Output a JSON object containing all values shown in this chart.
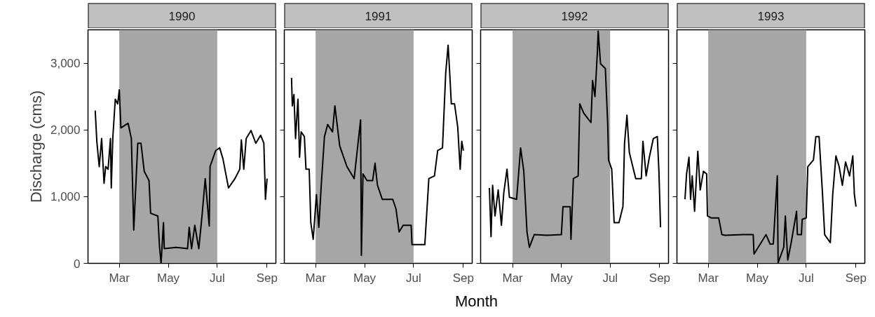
{
  "chart_data": [
    {
      "type": "line",
      "title": "1990",
      "ylabel": "Discharge (cms)",
      "xlim": [
        "1990-01-21",
        "1990-09-12"
      ],
      "ylim": [
        0,
        3500
      ],
      "yticks": [
        0,
        {
          "value": 1000,
          "label": "1,000"
        },
        {
          "value": 2000,
          "label": "2,000"
        },
        {
          "value": 3000,
          "label": "3,000"
        }
      ],
      "xticks": [
        {
          "value": "1990-03-01",
          "label": "Mar"
        },
        {
          "value": "1990-05-01",
          "label": "May"
        },
        {
          "value": "1990-07-01",
          "label": "Jul"
        },
        {
          "value": "1990-09-01",
          "label": "Sep"
        }
      ],
      "grid": false,
      "bands": [
        {
          "axis": "x",
          "from": "1990-03-01",
          "to": "1990-07-01",
          "color": "#a6a6a6"
        }
      ],
      "series": [
        {
          "color": "#000000",
          "x": [
            "1990-01-30",
            "1990-02-01",
            "1990-02-04",
            "1990-02-07",
            "1990-02-10",
            "1990-02-12",
            "1990-02-15",
            "1990-02-18",
            "1990-02-19",
            "1990-02-21",
            "1990-02-24",
            "1990-02-27",
            "1990-03-01",
            "1990-03-03",
            "1990-03-12",
            "1990-03-16",
            "1990-03-19",
            "1990-03-24",
            "1990-03-28",
            "1990-04-01",
            "1990-04-07",
            "1990-04-09",
            "1990-04-18",
            "1990-04-20",
            "1990-04-22",
            "1990-04-25",
            "1990-04-26",
            "1990-05-11",
            "1990-05-25",
            "1990-05-27",
            "1990-05-30",
            "1990-06-03",
            "1990-06-08",
            "1990-06-12",
            "1990-06-16",
            "1990-06-21",
            "1990-06-22",
            "1990-06-29",
            "1990-07-04",
            "1990-07-08",
            "1990-07-15",
            "1990-07-23",
            "1990-07-29",
            "1990-07-31",
            "1990-08-03",
            "1990-08-06",
            "1990-08-12",
            "1990-08-18",
            "1990-08-24",
            "1990-08-28",
            "1990-08-30",
            "1990-09-01"
          ],
          "values": [
            2290,
            1830,
            1450,
            1870,
            1200,
            1450,
            1410,
            1870,
            1130,
            1900,
            2460,
            2390,
            2600,
            2030,
            2100,
            1870,
            500,
            1800,
            1800,
            1380,
            1240,
            750,
            710,
            260,
            0,
            610,
            220,
            240,
            220,
            540,
            220,
            570,
            220,
            710,
            1270,
            560,
            1450,
            1690,
            1730,
            1570,
            1130,
            1270,
            1410,
            1850,
            1410,
            1870,
            1990,
            1800,
            1920,
            1800,
            960,
            1270
          ]
        }
      ]
    },
    {
      "type": "line",
      "title": "1991",
      "xlabel": "Month",
      "tick_labels": "x",
      "xlim": [
        "1991-01-21",
        "1991-09-12"
      ],
      "ylim": [
        0,
        3500
      ],
      "yticks": [
        {
          "value": 0,
          "label": null
        },
        {
          "value": 1000,
          "label": null
        },
        {
          "value": 2000,
          "label": null
        },
        {
          "value": 3000,
          "label": null
        }
      ],
      "xticks": [
        {
          "value": "1991-03-01",
          "label": "Mar"
        },
        {
          "value": "1991-05-01",
          "label": "May"
        },
        {
          "value": "1991-07-01",
          "label": "Jul"
        },
        {
          "value": "1991-09-01",
          "label": "Sep"
        }
      ],
      "grid": false,
      "bands": [
        {
          "axis": "x",
          "from": "1991-03-01",
          "to": "1991-07-01",
          "color": "#a6a6a6"
        }
      ],
      "series": [
        {
          "color": "#000000",
          "x": [
            "1991-01-30",
            "1991-01-31",
            "1991-02-02",
            "1991-02-04",
            "1991-02-07",
            "1991-02-09",
            "1991-02-11",
            "1991-02-15",
            "1991-02-17",
            "1991-02-21",
            "1991-02-23",
            "1991-02-26",
            "1991-03-02",
            "1991-03-05",
            "1991-03-08",
            "1991-03-12",
            "1991-03-16",
            "1991-03-22",
            "1991-03-25",
            "1991-03-31",
            "1991-04-09",
            "1991-04-18",
            "1991-04-26",
            "1991-04-27",
            "1991-04-29",
            "1991-05-04",
            "1991-05-11",
            "1991-05-14",
            "1991-05-17",
            "1991-05-23",
            "1991-06-05",
            "1991-06-09",
            "1991-06-13",
            "1991-06-18",
            "1991-06-28",
            "1991-06-29",
            "1991-07-15",
            "1991-07-20",
            "1991-07-27",
            "1991-07-31",
            "1991-08-06",
            "1991-08-10",
            "1991-08-13",
            "1991-08-15",
            "1991-08-17",
            "1991-08-21",
            "1991-08-25",
            "1991-08-28",
            "1991-08-30",
            "1991-09-01"
          ],
          "values": [
            2780,
            2360,
            2530,
            1870,
            2460,
            1590,
            1970,
            1900,
            1410,
            1410,
            610,
            360,
            1030,
            540,
            1170,
            1900,
            2080,
            1970,
            2360,
            1760,
            1450,
            1270,
            2150,
            120,
            1340,
            1240,
            1240,
            1500,
            1170,
            960,
            960,
            820,
            470,
            570,
            570,
            280,
            280,
            1270,
            1310,
            1690,
            1730,
            2850,
            3270,
            2850,
            2390,
            2390,
            2040,
            1410,
            1830,
            1690
          ]
        }
      ]
    },
    {
      "type": "line",
      "title": "1992",
      "tick_labels": "x",
      "xlim": [
        "1992-01-21",
        "1992-09-12"
      ],
      "ylim": [
        0,
        3500
      ],
      "yticks": [
        {
          "value": 0,
          "label": null
        },
        {
          "value": 1000,
          "label": null
        },
        {
          "value": 2000,
          "label": null
        },
        {
          "value": 3000,
          "label": null
        }
      ],
      "xticks": [
        {
          "value": "1992-03-01",
          "label": "Mar"
        },
        {
          "value": "1992-05-01",
          "label": "May"
        },
        {
          "value": "1992-07-01",
          "label": "Jul"
        },
        {
          "value": "1992-09-01",
          "label": "Sep"
        }
      ],
      "grid": false,
      "bands": [
        {
          "axis": "x",
          "from": "1992-03-01",
          "to": "1992-07-01",
          "color": "#a6a6a6"
        }
      ],
      "series": [
        {
          "color": "#000000",
          "x": [
            "1992-02-01",
            "1992-02-03",
            "1992-02-05",
            "1992-02-08",
            "1992-02-12",
            "1992-02-16",
            "1992-02-19",
            "1992-02-23",
            "1992-02-26",
            "1992-03-06",
            "1992-03-11",
            "1992-03-15",
            "1992-03-19",
            "1992-03-22",
            "1992-03-28",
            "1992-04-13",
            "1992-05-01",
            "1992-05-03",
            "1992-05-12",
            "1992-05-13",
            "1992-05-16",
            "1992-05-22",
            "1992-05-24",
            "1992-05-29",
            "1992-06-07",
            "1992-06-09",
            "1992-06-12",
            "1992-06-15",
            "1992-06-16",
            "1992-06-19",
            "1992-06-25",
            "1992-06-28",
            "1992-06-29",
            "1992-07-03",
            "1992-07-06",
            "1992-07-12",
            "1992-07-17",
            "1992-07-19",
            "1992-07-22",
            "1992-07-25",
            "1992-08-02",
            "1992-08-09",
            "1992-08-11",
            "1992-08-15",
            "1992-08-19",
            "1992-08-24",
            "1992-08-29",
            "1992-08-31",
            "1992-09-02"
          ],
          "values": [
            1130,
            400,
            1170,
            710,
            1100,
            570,
            1060,
            1410,
            990,
            960,
            1730,
            1380,
            470,
            240,
            430,
            420,
            430,
            850,
            850,
            360,
            1270,
            1310,
            2390,
            2250,
            2110,
            2740,
            2500,
            3160,
            3480,
            2990,
            2920,
            2080,
            1550,
            1410,
            610,
            610,
            850,
            1800,
            2220,
            1660,
            1270,
            1270,
            1830,
            1310,
            1590,
            1870,
            1900,
            1380,
            540
          ]
        }
      ]
    },
    {
      "type": "line",
      "title": "1993",
      "tick_labels": "x",
      "xlim": [
        "1993-01-21",
        "1993-09-12"
      ],
      "ylim": [
        0,
        3500
      ],
      "yticks": [
        {
          "value": 0,
          "label": null
        },
        {
          "value": 1000,
          "label": null
        },
        {
          "value": 2000,
          "label": null
        },
        {
          "value": 3000,
          "label": null
        }
      ],
      "xticks": [
        {
          "value": "1993-03-01",
          "label": "Mar"
        },
        {
          "value": "1993-05-01",
          "label": "May"
        },
        {
          "value": "1993-07-01",
          "label": "Jul"
        },
        {
          "value": "1993-09-01",
          "label": "Sep"
        }
      ],
      "grid": false,
      "bands": [
        {
          "axis": "x",
          "from": "1993-03-01",
          "to": "1993-07-01",
          "color": "#a6a6a6"
        }
      ],
      "series": [
        {
          "color": "#000000",
          "x": [
            "1993-01-31",
            "1993-02-02",
            "1993-02-05",
            "1993-02-07",
            "1993-02-09",
            "1993-02-12",
            "1993-02-16",
            "1993-02-19",
            "1993-02-23",
            "1993-02-27",
            "1993-02-28",
            "1993-03-05",
            "1993-03-14",
            "1993-03-18",
            "1993-03-22",
            "1993-04-13",
            "1993-04-26",
            "1993-04-27",
            "1993-05-12",
            "1993-05-17",
            "1993-05-21",
            "1993-05-26",
            "1993-05-27",
            "1993-06-03",
            "1993-06-05",
            "1993-06-08",
            "1993-06-12",
            "1993-06-19",
            "1993-06-20",
            "1993-06-25",
            "1993-06-26",
            "1993-07-01",
            "1993-07-03",
            "1993-07-10",
            "1993-07-13",
            "1993-07-17",
            "1993-07-21",
            "1993-07-24",
            "1993-07-31",
            "1993-08-03",
            "1993-08-07",
            "1993-08-11",
            "1993-08-15",
            "1993-08-19",
            "1993-08-24",
            "1993-08-28",
            "1993-08-30",
            "1993-09-01"
          ],
          "values": [
            960,
            1340,
            1590,
            960,
            1310,
            780,
            1680,
            1100,
            1380,
            1340,
            710,
            680,
            680,
            430,
            420,
            430,
            430,
            140,
            430,
            290,
            290,
            1310,
            10,
            240,
            710,
            50,
            290,
            780,
            430,
            430,
            660,
            680,
            1450,
            1550,
            1900,
            1900,
            1100,
            430,
            310,
            1030,
            1610,
            1450,
            1170,
            1520,
            1310,
            1610,
            1030,
            850
          ]
        }
      ]
    }
  ]
}
